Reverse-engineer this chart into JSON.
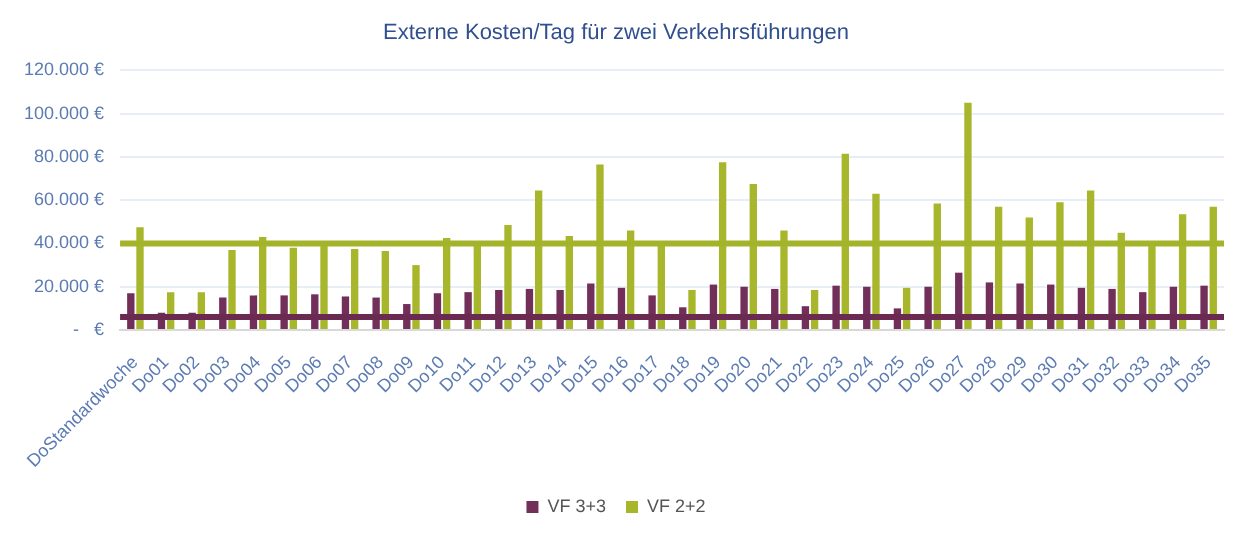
{
  "chart_data": {
    "type": "bar",
    "title": "Externe Kosten/Tag für zwei Verkehrsführungen",
    "categories": [
      "DoStandardwoche",
      "Do01",
      "Do02",
      "Do03",
      "Do04",
      "Do05",
      "Do06",
      "Do07",
      "Do08",
      "Do09",
      "Do10",
      "Do11",
      "Do12",
      "Do13",
      "Do14",
      "Do15",
      "Do16",
      "Do17",
      "Do18",
      "Do19",
      "Do20",
      "Do21",
      "Do22",
      "Do23",
      "Do24",
      "Do25",
      "Do26",
      "Do27",
      "Do28",
      "Do29",
      "Do30",
      "Do31",
      "Do32",
      "Do33",
      "Do34",
      "Do35"
    ],
    "series": [
      {
        "name": "VF 3+3",
        "color": "#722f5a",
        "values": [
          17000,
          8000,
          8000,
          15000,
          16000,
          16000,
          16500,
          15500,
          15000,
          12000,
          17000,
          17500,
          18500,
          19000,
          18500,
          21500,
          19500,
          16000,
          10500,
          21000,
          20000,
          19000,
          11000,
          20500,
          20000,
          10000,
          20000,
          26500,
          22000,
          21500,
          21000,
          19500,
          19000,
          17500,
          20000,
          20500
        ]
      },
      {
        "name": "VF 2+2",
        "color": "#a8b62c",
        "values": [
          47500,
          17500,
          17500,
          37000,
          43000,
          38000,
          39500,
          37500,
          36500,
          30000,
          42500,
          39000,
          48500,
          64500,
          43500,
          76500,
          46000,
          39500,
          18500,
          77500,
          67500,
          46000,
          18500,
          81500,
          63000,
          19500,
          58500,
          105000,
          57000,
          52000,
          59000,
          64500,
          45000,
          40000,
          53500,
          57000
        ]
      }
    ],
    "ylim": [
      0,
      120000
    ],
    "yticks": [
      {
        "value": 0,
        "label": "-   €"
      },
      {
        "value": 20000,
        "label": "20.000 €"
      },
      {
        "value": 40000,
        "label": "40.000 €"
      },
      {
        "value": 60000,
        "label": "60.000 €"
      },
      {
        "value": 80000,
        "label": "80.000 €"
      },
      {
        "value": 100000,
        "label": "100.000 €"
      },
      {
        "value": 120000,
        "label": "120.000 €"
      }
    ],
    "ref_lines": [
      {
        "axis": "y",
        "value": 40000,
        "color": "#a4b42a"
      },
      {
        "axis": "y",
        "value": 6000,
        "color": "#6b2a52"
      }
    ],
    "grid": "y",
    "legend": "bottom"
  }
}
